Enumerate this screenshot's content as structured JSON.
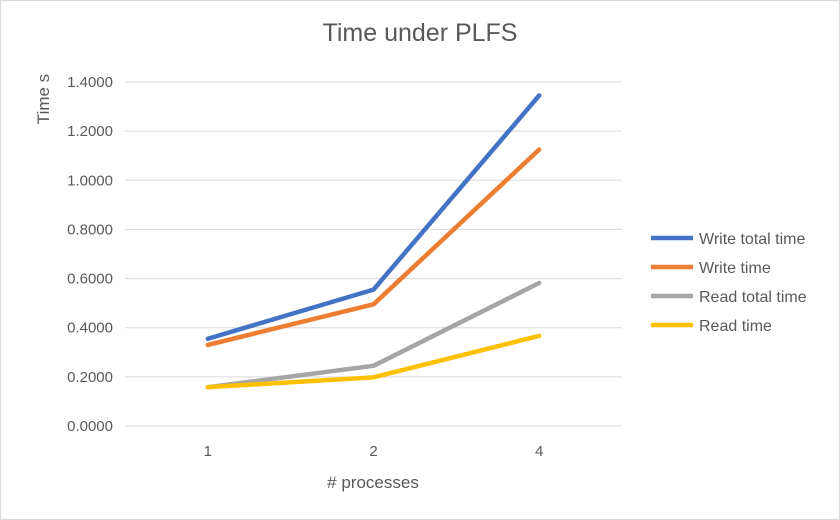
{
  "chart_data": {
    "type": "line",
    "title": "Time under PLFS",
    "xlabel": "# processes",
    "ylabel": "Time s",
    "categories": [
      "1",
      "2",
      "4"
    ],
    "ylim": [
      0,
      1.4
    ],
    "yticks": [
      "0.0000",
      "0.2000",
      "0.4000",
      "0.6000",
      "0.8000",
      "1.0000",
      "1.2000",
      "1.4000"
    ],
    "grid": true,
    "legend_position": "right",
    "series": [
      {
        "name": "Write total time",
        "color": "#4472c4",
        "values": [
          0.355,
          0.555,
          1.345
        ]
      },
      {
        "name": "Write time",
        "color": "#ed7d31",
        "values": [
          0.33,
          0.495,
          1.125
        ]
      },
      {
        "name": "Read total time",
        "color": "#a5a5a5",
        "values": [
          0.158,
          0.245,
          0.582
        ]
      },
      {
        "name": "Read time",
        "color": "#ffc000",
        "values": [
          0.158,
          0.198,
          0.367
        ]
      }
    ]
  }
}
